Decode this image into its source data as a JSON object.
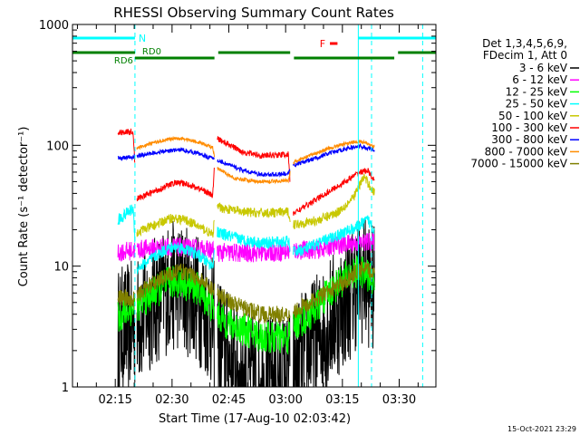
{
  "chart_data": {
    "type": "line",
    "title": "RHESSI Observing Summary Count Rates",
    "xlabel": "Start Time (17-Aug-10 02:03:42)",
    "ylabel": "Count Rate (s⁻¹ detector⁻¹)",
    "yscale": "log",
    "ylim": [
      1,
      1000
    ],
    "xlim_min": [
      0,
      96
    ],
    "x_tick_labels": [
      "02:15",
      "02:30",
      "02:45",
      "03:00",
      "03:15",
      "03:30"
    ],
    "x_tick_minutes": [
      11.3,
      26.3,
      41.3,
      56.3,
      71.3,
      86.3
    ],
    "y_tick_labels": [
      "1",
      "10",
      "100",
      "1000"
    ],
    "y_tick_values": [
      1,
      10,
      100,
      1000
    ],
    "legend_header": [
      "Det 1,3,4,5,6,9,",
      "FDecim 1, Att 0"
    ],
    "legend_placement": "right",
    "timestamp": "15-Oct-2021 23:29",
    "colors": {
      "axis": "#000000",
      "night": "#00ffff",
      "saa": "#008000",
      "flare": "#ff0000"
    },
    "state_bars": {
      "night": {
        "label": "N",
        "segments_min": [
          [
            0,
            16.5
          ],
          [
            75.5,
            96
          ]
        ]
      },
      "saa": {
        "labels": [
          "RD0",
          "RD6"
        ],
        "segments_min": [
          [
            0,
            16.5
          ],
          [
            16.5,
            37.5
          ],
          [
            38.5,
            57.5
          ],
          [
            58.5,
            85
          ],
          [
            86,
            96
          ]
        ]
      },
      "flare": {
        "label": "F",
        "segments_min": [
          [
            68,
            70
          ]
        ]
      }
    },
    "vertical_markers_min": [
      0,
      16.5,
      75.5,
      79,
      92.5
    ],
    "gaps_min": [
      [
        16.5,
        17.0
      ],
      [
        37.5,
        38.2
      ],
      [
        57.5,
        58.3
      ],
      [
        79.8,
        96
      ]
    ],
    "data_start_min": 12,
    "series": [
      {
        "name": "3 - 6 keV",
        "color": "#000000",
        "k": [
          [
            12,
            2.8
          ],
          [
            16,
            3.2
          ],
          [
            20,
            4.5
          ],
          [
            25,
            6.5
          ],
          [
            28,
            7
          ],
          [
            33,
            5.5
          ],
          [
            37,
            3.4
          ],
          [
            40,
            2
          ],
          [
            45,
            1.2
          ],
          [
            50,
            1.1
          ],
          [
            57,
            1.2
          ],
          [
            58,
            1.4
          ],
          [
            62,
            2
          ],
          [
            65,
            2.6
          ],
          [
            68,
            3.5
          ],
          [
            72,
            5
          ],
          [
            74,
            6.3
          ],
          [
            76,
            8
          ],
          [
            78,
            7.5
          ],
          [
            79.8,
            6
          ]
        ],
        "noise": 0.55
      },
      {
        "name": "6 - 12 keV",
        "color": "#ff00ff",
        "k": [
          [
            12,
            13
          ],
          [
            20,
            14
          ],
          [
            25,
            14.5
          ],
          [
            30,
            14.2
          ],
          [
            37,
            13.5
          ],
          [
            38,
            13
          ],
          [
            45,
            12.8
          ],
          [
            57,
            13.2
          ],
          [
            58,
            13.4
          ],
          [
            65,
            13.8
          ],
          [
            70,
            15
          ],
          [
            75,
            15.5
          ],
          [
            79.8,
            16
          ]
        ],
        "noise": 0.08
      },
      {
        "name": "12 - 25 keV",
        "color": "#00ff00",
        "k": [
          [
            12,
            3.8
          ],
          [
            16,
            4.5
          ],
          [
            20,
            5.5
          ],
          [
            25,
            7.2
          ],
          [
            28,
            7.5
          ],
          [
            33,
            6.5
          ],
          [
            37,
            4.5
          ],
          [
            40,
            3.5
          ],
          [
            45,
            3
          ],
          [
            50,
            2.6
          ],
          [
            57,
            2.5
          ],
          [
            58,
            3.2
          ],
          [
            62,
            3.8
          ],
          [
            65,
            4.8
          ],
          [
            68,
            6.2
          ],
          [
            72,
            8
          ],
          [
            75,
            9
          ],
          [
            78,
            8.5
          ],
          [
            79.8,
            7
          ]
        ],
        "noise": 0.14
      },
      {
        "name": "25 - 50 keV",
        "color": "#00ffff",
        "k": [
          [
            12,
            24
          ],
          [
            16,
            30
          ],
          [
            17,
            9.5
          ],
          [
            20,
            11
          ],
          [
            25,
            14
          ],
          [
            28,
            14.5
          ],
          [
            33,
            12.5
          ],
          [
            37,
            10
          ],
          [
            38,
            19
          ],
          [
            45,
            16.5
          ],
          [
            50,
            15.5
          ],
          [
            57,
            16
          ],
          [
            58,
            13
          ],
          [
            62,
            14
          ],
          [
            65,
            15.5
          ],
          [
            70,
            18
          ],
          [
            75,
            21
          ],
          [
            78,
            24
          ],
          [
            79.8,
            20
          ]
        ],
        "noise": 0.05
      },
      {
        "name": "50 - 100 keV",
        "color": "#c8c800",
        "k": [
          [
            17,
            19
          ],
          [
            22,
            22
          ],
          [
            26,
            25
          ],
          [
            30,
            24
          ],
          [
            35,
            20
          ],
          [
            37,
            18
          ],
          [
            38,
            31
          ],
          [
            45,
            28
          ],
          [
            50,
            27.5
          ],
          [
            57,
            28
          ],
          [
            58,
            22
          ],
          [
            65,
            24
          ],
          [
            70,
            28
          ],
          [
            74,
            36
          ],
          [
            77,
            55
          ],
          [
            79.8,
            40
          ]
        ],
        "noise": 0.04
      },
      {
        "name": "100 - 300 keV",
        "color": "#ff0000",
        "k": [
          [
            12,
            128
          ],
          [
            16,
            130
          ],
          [
            17,
            36
          ],
          [
            22,
            42
          ],
          [
            27,
            49
          ],
          [
            30,
            48
          ],
          [
            35,
            42
          ],
          [
            37,
            38
          ],
          [
            38,
            115
          ],
          [
            45,
            88
          ],
          [
            50,
            82
          ],
          [
            57,
            84
          ],
          [
            58,
            27
          ],
          [
            62,
            32
          ],
          [
            67,
            40
          ],
          [
            72,
            50
          ],
          [
            76,
            60
          ],
          [
            78,
            62
          ],
          [
            79.8,
            50
          ]
        ],
        "noise": 0.025
      },
      {
        "name": "300 - 800 keV",
        "color": "#0000ff",
        "k": [
          [
            12,
            78
          ],
          [
            16,
            80
          ],
          [
            20,
            85
          ],
          [
            25,
            90
          ],
          [
            29,
            92
          ],
          [
            33,
            86
          ],
          [
            37,
            78
          ],
          [
            38,
            76
          ],
          [
            45,
            62
          ],
          [
            50,
            57
          ],
          [
            57,
            58
          ],
          [
            58,
            68
          ],
          [
            63,
            76
          ],
          [
            68,
            86
          ],
          [
            73,
            95
          ],
          [
            76,
            98
          ],
          [
            79.8,
            92
          ]
        ],
        "noise": 0.018
      },
      {
        "name": "800 - 7000 keV",
        "color": "#ff8c00",
        "k": [
          [
            17,
            95
          ],
          [
            21,
            104
          ],
          [
            25,
            112
          ],
          [
            29,
            114
          ],
          [
            33,
            107
          ],
          [
            37,
            96
          ],
          [
            38,
            65
          ],
          [
            43,
            53
          ],
          [
            50,
            50
          ],
          [
            57,
            51
          ],
          [
            58,
            71
          ],
          [
            63,
            83
          ],
          [
            68,
            95
          ],
          [
            73,
            105
          ],
          [
            76,
            108
          ],
          [
            79.8,
            98
          ]
        ],
        "noise": 0.015
      },
      {
        "name": "7000 - 15000 keV",
        "color": "#808000",
        "k": [
          [
            12,
            5.5
          ],
          [
            16,
            5.3
          ],
          [
            20,
            6.8
          ],
          [
            25,
            8.5
          ],
          [
            29,
            9
          ],
          [
            33,
            8
          ],
          [
            37,
            6.5
          ],
          [
            40,
            5.5
          ],
          [
            45,
            4.5
          ],
          [
            50,
            4
          ],
          [
            57,
            4
          ],
          [
            58,
            4.2
          ],
          [
            62,
            4.8
          ],
          [
            67,
            6
          ],
          [
            72,
            7.5
          ],
          [
            75,
            9
          ],
          [
            77,
            9.5
          ],
          [
            79.8,
            8.5
          ]
        ],
        "noise": 0.07
      }
    ]
  }
}
